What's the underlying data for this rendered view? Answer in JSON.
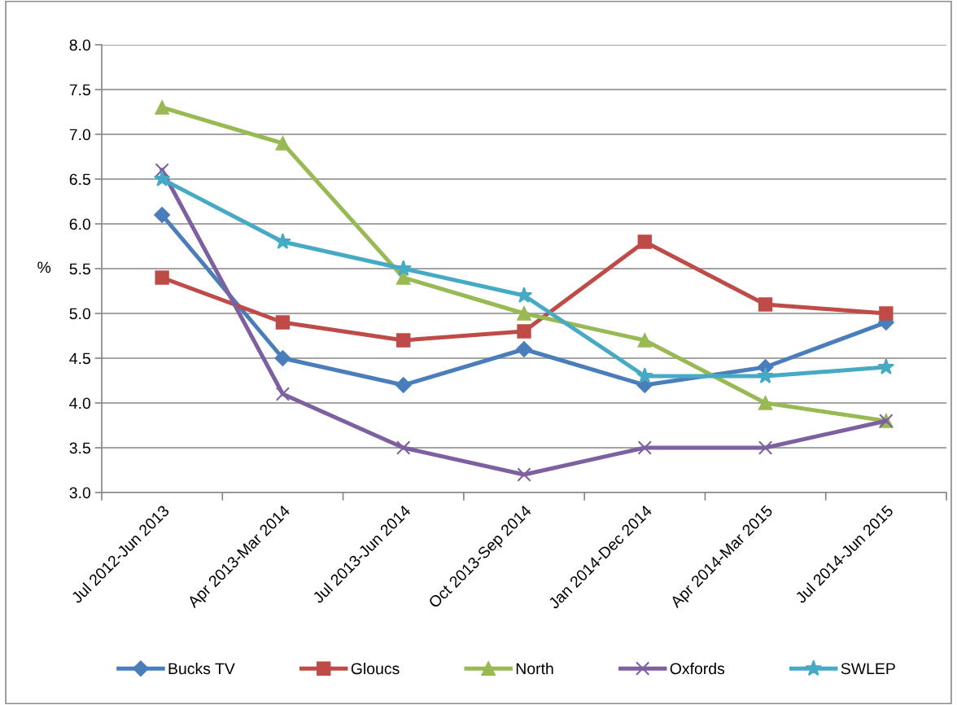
{
  "chart_data": {
    "type": "line",
    "ylabel": "%",
    "categories": [
      "Jul 2012-Jun 2013",
      "Apr 2013-Mar 2014",
      "Jul 2013-Jun 2014",
      "Oct 2013-Sep 2014",
      "Jan 2014-Dec 2014",
      "Apr 2014-Mar 2015",
      "Jul 2014-Jun 2015"
    ],
    "ylim": [
      3,
      8
    ],
    "yticks": [
      {
        "value": 3,
        "label": "3.0"
      },
      {
        "value": 3.5,
        "label": "3.5"
      },
      {
        "value": 4,
        "label": "4.0"
      },
      {
        "value": 4.5,
        "label": "4.5"
      },
      {
        "value": 5,
        "label": "5.0"
      },
      {
        "value": 5.5,
        "label": "5.5"
      },
      {
        "value": 6,
        "label": "6.0"
      },
      {
        "value": 6.5,
        "label": "6.5"
      },
      {
        "value": 7,
        "label": "7.0"
      },
      {
        "value": 7.5,
        "label": "7.5"
      },
      {
        "value": 8,
        "label": "8.0"
      }
    ],
    "grid": "y",
    "legend": "bottom",
    "line_style": "solid",
    "series": [
      {
        "name": "Bucks TV",
        "color": "#4a7ebb",
        "marker": "diamond",
        "values": [
          6.1,
          4.5,
          4.2,
          4.6,
          4.2,
          4.4,
          4.9
        ]
      },
      {
        "name": "Gloucs",
        "color": "#be4b48",
        "marker": "square",
        "values": [
          5.4,
          4.9,
          4.7,
          4.8,
          5.8,
          5.1,
          5.0
        ]
      },
      {
        "name": "North",
        "color": "#98b954",
        "marker": "triangle",
        "values": [
          7.3,
          6.9,
          5.4,
          5.0,
          4.7,
          4.0,
          3.8
        ]
      },
      {
        "name": "Oxfords",
        "color": "#7d60a0",
        "marker": "cross",
        "values": [
          6.6,
          4.1,
          3.5,
          3.2,
          3.5,
          3.5,
          3.8
        ]
      },
      {
        "name": "SWLEP",
        "color": "#46aac5",
        "marker": "star",
        "values": [
          6.5,
          5.8,
          5.5,
          5.2,
          4.3,
          4.3,
          4.4
        ]
      }
    ]
  }
}
